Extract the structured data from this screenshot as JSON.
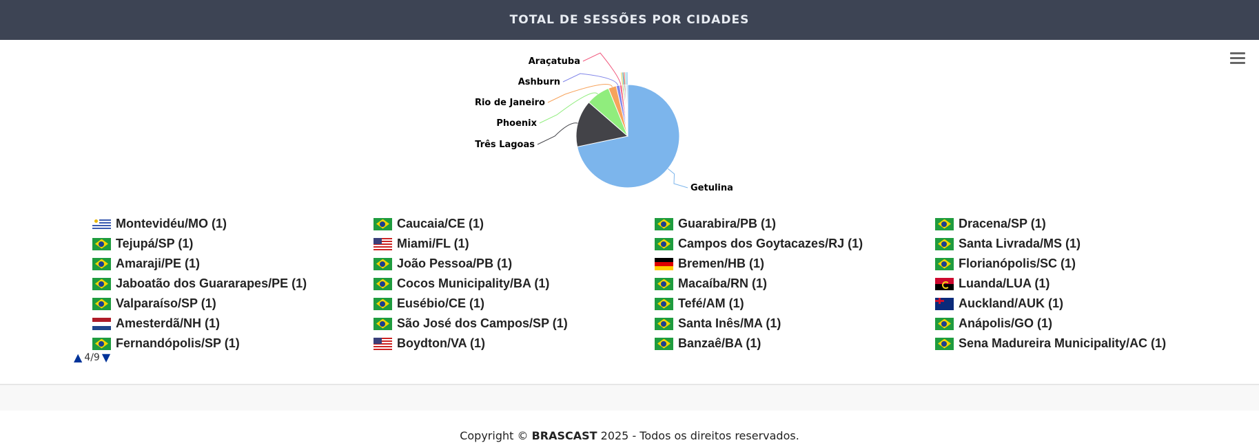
{
  "header": {
    "title": "TOTAL DE SESSÕES POR CIDADES"
  },
  "chart_data": {
    "type": "pie",
    "title": "TOTAL DE SESSÕES POR CIDADES",
    "unit": "percent (estimated)",
    "slices": [
      {
        "name": "Getulina",
        "value": 71.7,
        "color": "#7cb5ec"
      },
      {
        "name": "Três Lagoas",
        "value": 14.7,
        "color": "#434348"
      },
      {
        "name": "Phoenix",
        "value": 7.5,
        "color": "#90ed7d"
      },
      {
        "name": "Rio de Janeiro",
        "value": 2.5,
        "color": "#f7a35c"
      },
      {
        "name": "Ashburn",
        "value": 1.1,
        "color": "#8085e9"
      },
      {
        "name": "Araçatuba",
        "value": 0.7,
        "color": "#f15c80"
      },
      {
        "name": "",
        "value": 0.4,
        "color": "#e4d354"
      },
      {
        "name": "",
        "value": 0.35,
        "color": "#2b908f"
      },
      {
        "name": "",
        "value": 0.35,
        "color": "#f45b5b"
      },
      {
        "name": "",
        "value": 0.35,
        "color": "#91e8e1"
      },
      {
        "name": "",
        "value": 0.35,
        "color": "#7cb5ec"
      }
    ]
  },
  "legend": {
    "page": "4/9",
    "items": [
      {
        "label": "Montevidéu/MO (1)",
        "flag": "uy"
      },
      {
        "label": "Tejupá/SP (1)",
        "flag": "br"
      },
      {
        "label": "Amaraji/PE (1)",
        "flag": "br"
      },
      {
        "label": "Jaboatão dos Guararapes/PE (1)",
        "flag": "br"
      },
      {
        "label": "Valparaíso/SP (1)",
        "flag": "br"
      },
      {
        "label": "Amesterdã/NH (1)",
        "flag": "nl"
      },
      {
        "label": "Fernandópolis/SP (1)",
        "flag": "br"
      },
      {
        "label": "Caucaia/CE (1)",
        "flag": "br"
      },
      {
        "label": "Miami/FL (1)",
        "flag": "us"
      },
      {
        "label": "João Pessoa/PB (1)",
        "flag": "br"
      },
      {
        "label": "Cocos Municipality/BA (1)",
        "flag": "br"
      },
      {
        "label": "Eusébio/CE (1)",
        "flag": "br"
      },
      {
        "label": "São José dos Campos/SP (1)",
        "flag": "br"
      },
      {
        "label": "Boydton/VA (1)",
        "flag": "us"
      },
      {
        "label": "Guarabira/PB (1)",
        "flag": "br"
      },
      {
        "label": "Campos dos Goytacazes/RJ (1)",
        "flag": "br"
      },
      {
        "label": "Bremen/HB (1)",
        "flag": "de"
      },
      {
        "label": "Macaíba/RN (1)",
        "flag": "br"
      },
      {
        "label": "Tefé/AM (1)",
        "flag": "br"
      },
      {
        "label": "Santa Inês/MA (1)",
        "flag": "br"
      },
      {
        "label": "Banzaê/BA (1)",
        "flag": "br"
      },
      {
        "label": "Dracena/SP (1)",
        "flag": "br"
      },
      {
        "label": "Santa Livrada/MS (1)",
        "flag": "br"
      },
      {
        "label": "Florianópolis/SC (1)",
        "flag": "br"
      },
      {
        "label": "Luanda/LUA (1)",
        "flag": "ao"
      },
      {
        "label": "Auckland/AUK (1)",
        "flag": "nz"
      },
      {
        "label": "Anápolis/GO (1)",
        "flag": "br"
      },
      {
        "label": "Sena Madureira Municipality/AC (1)",
        "flag": "br"
      }
    ]
  },
  "footer": {
    "prefix": "Copyright © ",
    "brand": "BRASCAST",
    "suffix": " 2025 - Todos os direitos reservados."
  }
}
